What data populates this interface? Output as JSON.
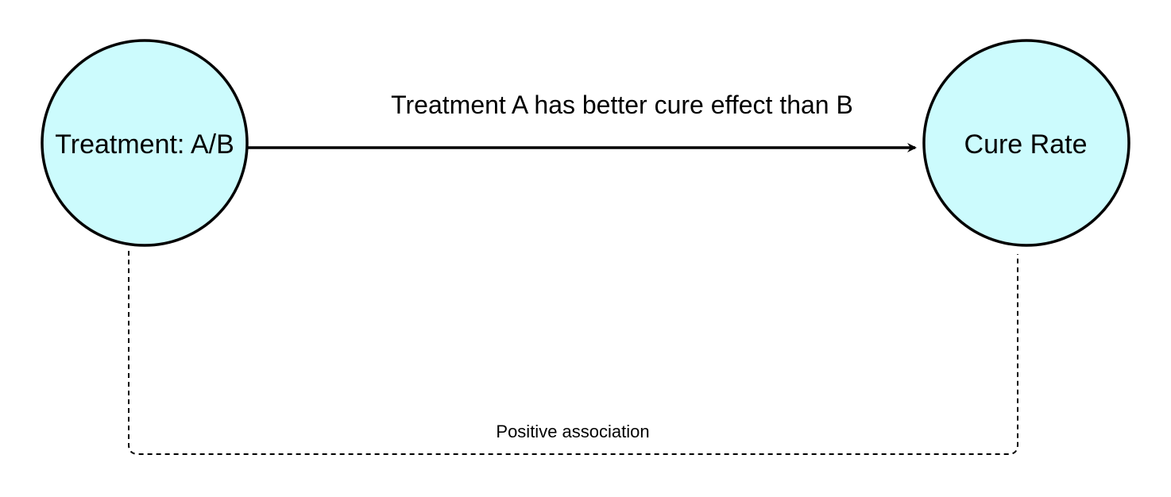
{
  "nodes": {
    "treatment": {
      "label": "Treatment: A/B"
    },
    "cure_rate": {
      "label": "Cure Rate"
    }
  },
  "edges": {
    "causal": {
      "label": "Treatment A has better cure effect than B"
    },
    "association": {
      "label": "Positive association"
    }
  },
  "colors": {
    "node_fill": "#ccfbfd",
    "stroke": "#000000"
  }
}
